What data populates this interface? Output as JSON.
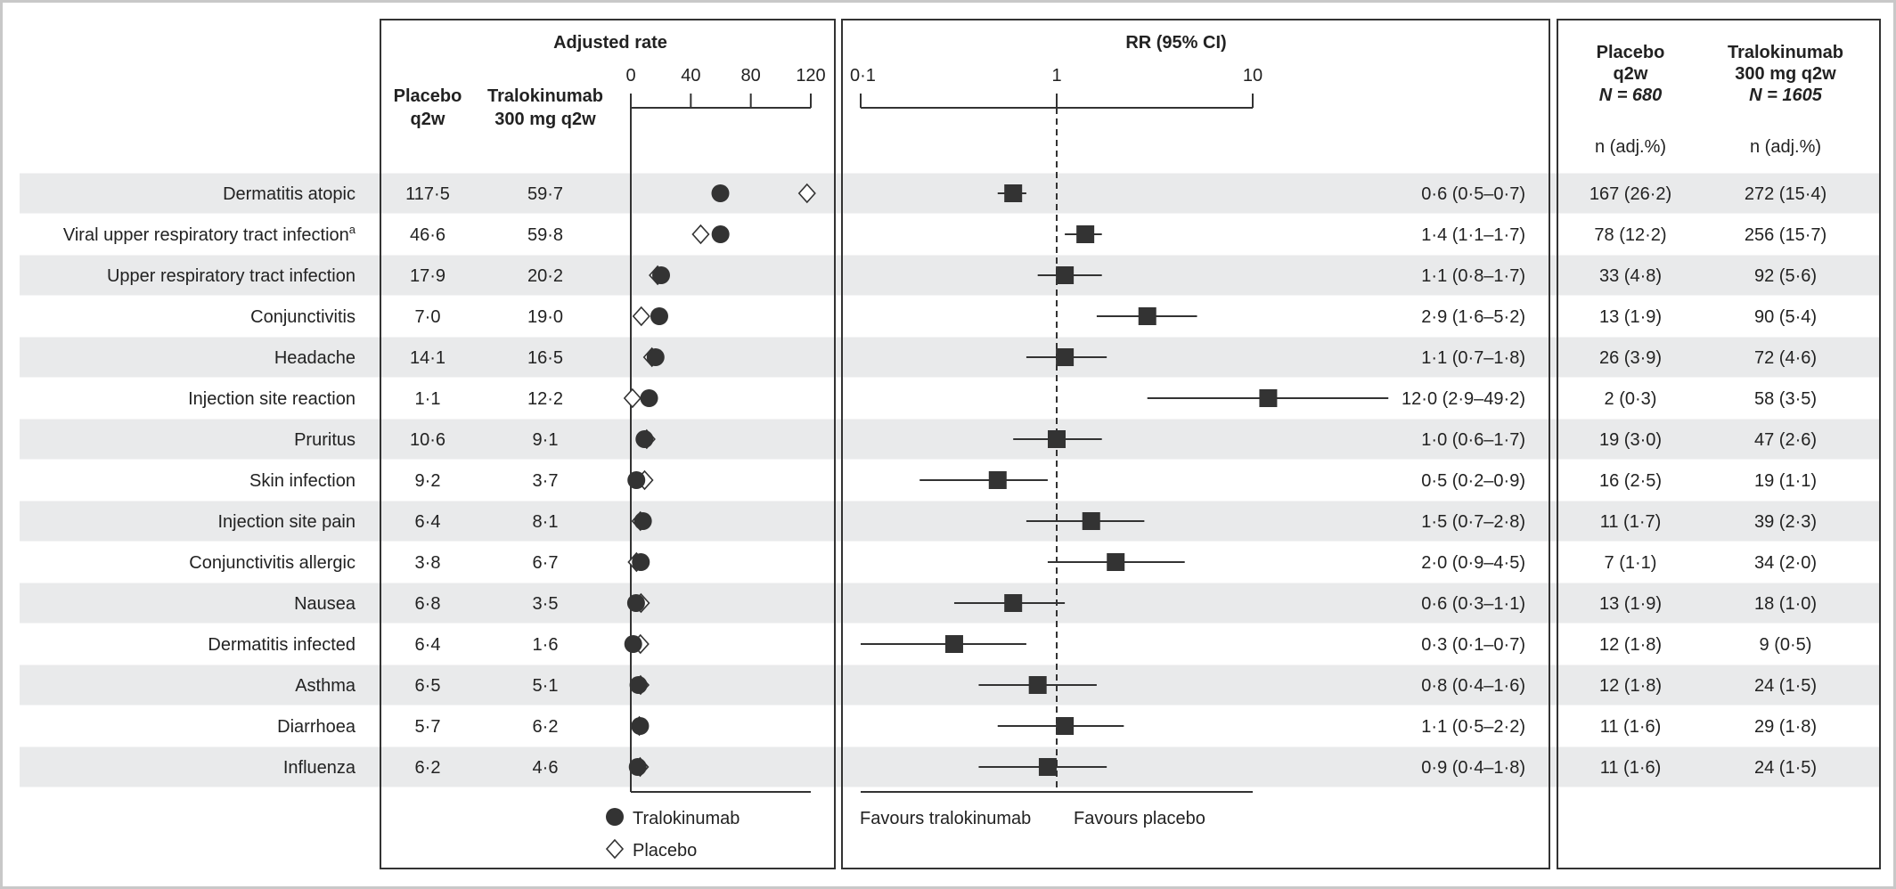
{
  "headers": {
    "adjusted_rate": "Adjusted rate",
    "placebo_col": [
      "Placebo",
      "q2w"
    ],
    "tralo_col": [
      "Tralokinumab",
      "300 mg q2w"
    ],
    "rr": "RR (95% CI)",
    "right_placebo": [
      "Placebo",
      "q2w"
    ],
    "right_placebo_n": "N = 680",
    "right_tralo": [
      "Tralokinumab",
      "300 mg q2w"
    ],
    "right_tralo_n": "N = 1605",
    "n_adj": "n (adj.%)"
  },
  "rate_axis_ticks": [
    "0",
    "40",
    "80",
    "120"
  ],
  "rr_axis_ticks": [
    "0·1",
    "1",
    "10"
  ],
  "legend": {
    "tralokinumab": "Tralokinumab",
    "placebo": "Placebo"
  },
  "favours": {
    "left": "Favours tralokinumab",
    "right": "Favours placebo"
  },
  "colors": {
    "band": "#e9eaeb",
    "marker": "#333333",
    "frame": "#333333"
  },
  "rows": [
    {
      "label": "Dermatitis atopic",
      "label_sup": "",
      "placebo_rate": "117·5",
      "tralo_rate": "59·7",
      "rr_text": "0·6 (0·5–0·7)",
      "placebo_n": "167 (26·2)",
      "tralo_n": "272 (15·4)"
    },
    {
      "label": "Viral upper respiratory tract infection",
      "label_sup": "a",
      "placebo_rate": "46·6",
      "tralo_rate": "59·8",
      "rr_text": "1·4 (1·1–1·7)",
      "placebo_n": "78 (12·2)",
      "tralo_n": "256 (15·7)"
    },
    {
      "label": "Upper respiratory tract infection",
      "label_sup": "",
      "placebo_rate": "17·9",
      "tralo_rate": "20·2",
      "rr_text": "1·1 (0·8–1·7)",
      "placebo_n": "33 (4·8)",
      "tralo_n": "92 (5·6)"
    },
    {
      "label": "Conjunctivitis",
      "label_sup": "",
      "placebo_rate": "7·0",
      "tralo_rate": "19·0",
      "rr_text": "2·9 (1·6–5·2)",
      "placebo_n": "13 (1·9)",
      "tralo_n": "90 (5·4)"
    },
    {
      "label": "Headache",
      "label_sup": "",
      "placebo_rate": "14·1",
      "tralo_rate": "16·5",
      "rr_text": "1·1 (0·7–1·8)",
      "placebo_n": "26 (3·9)",
      "tralo_n": "72 (4·6)"
    },
    {
      "label": "Injection site reaction",
      "label_sup": "",
      "placebo_rate": "1·1",
      "tralo_rate": "12·2",
      "rr_text": "12·0 (2·9–49·2)",
      "placebo_n": "2 (0·3)",
      "tralo_n": "58 (3·5)"
    },
    {
      "label": "Pruritus",
      "label_sup": "",
      "placebo_rate": "10·6",
      "tralo_rate": "9·1",
      "rr_text": "1·0 (0·6–1·7)",
      "placebo_n": "19 (3·0)",
      "tralo_n": "47 (2·6)"
    },
    {
      "label": "Skin infection",
      "label_sup": "",
      "placebo_rate": "9·2",
      "tralo_rate": "3·7",
      "rr_text": "0·5 (0·2–0·9)",
      "placebo_n": "16 (2·5)",
      "tralo_n": "19 (1·1)"
    },
    {
      "label": "Injection site pain",
      "label_sup": "",
      "placebo_rate": "6·4",
      "tralo_rate": "8·1",
      "rr_text": "1·5 (0·7–2·8)",
      "placebo_n": "11 (1·7)",
      "tralo_n": "39 (2·3)"
    },
    {
      "label": "Conjunctivitis allergic",
      "label_sup": "",
      "placebo_rate": "3·8",
      "tralo_rate": "6·7",
      "rr_text": "2·0 (0·9–4·5)",
      "placebo_n": "7 (1·1)",
      "tralo_n": "34 (2·0)"
    },
    {
      "label": "Nausea",
      "label_sup": "",
      "placebo_rate": "6·8",
      "tralo_rate": "3·5",
      "rr_text": "0·6 (0·3–1·1)",
      "placebo_n": "13 (1·9)",
      "tralo_n": "18 (1·0)"
    },
    {
      "label": "Dermatitis infected",
      "label_sup": "",
      "placebo_rate": "6·4",
      "tralo_rate": "1·6",
      "rr_text": "0·3 (0·1–0·7)",
      "placebo_n": "12 (1·8)",
      "tralo_n": "9 (0·5)"
    },
    {
      "label": "Asthma",
      "label_sup": "",
      "placebo_rate": "6·5",
      "tralo_rate": "5·1",
      "rr_text": "0·8 (0·4–1·6)",
      "placebo_n": "12 (1·8)",
      "tralo_n": "24 (1·5)"
    },
    {
      "label": "Diarrhoea",
      "label_sup": "",
      "placebo_rate": "5·7",
      "tralo_rate": "6·2",
      "rr_text": "1·1 (0·5–2·2)",
      "placebo_n": "11 (1·6)",
      "tralo_n": "29 (1·8)"
    },
    {
      "label": "Influenza",
      "label_sup": "",
      "placebo_rate": "6·2",
      "tralo_rate": "4·6",
      "rr_text": "0·9 (0·4–1·8)",
      "placebo_n": "11 (1·6)",
      "tralo_n": "24 (1·5)"
    }
  ],
  "chart_data": {
    "type": "scatter",
    "title": "",
    "panels": [
      "Adjusted rate",
      "RR (95% CI)"
    ],
    "categories": [
      "Dermatitis atopic",
      "Viral upper respiratory tract infection",
      "Upper respiratory tract infection",
      "Conjunctivitis",
      "Headache",
      "Injection site reaction",
      "Pruritus",
      "Skin infection",
      "Injection site pain",
      "Conjunctivitis allergic",
      "Nausea",
      "Dermatitis infected",
      "Asthma",
      "Diarrhoea",
      "Influenza"
    ],
    "rate_xlim": [
      0,
      120
    ],
    "rate_series": [
      {
        "name": "Tralokinumab",
        "marker": "filled-circle",
        "values": [
          59.7,
          59.8,
          20.2,
          19.0,
          16.5,
          12.2,
          9.1,
          3.7,
          8.1,
          6.7,
          3.5,
          1.6,
          5.1,
          6.2,
          4.6
        ]
      },
      {
        "name": "Placebo",
        "marker": "open-diamond",
        "values": [
          117.5,
          46.6,
          17.9,
          7.0,
          14.1,
          1.1,
          10.6,
          9.2,
          6.4,
          3.8,
          6.8,
          6.4,
          6.5,
          5.7,
          6.2
        ]
      }
    ],
    "rr_xlim": [
      0.1,
      10
    ],
    "rr_scale": "log",
    "rr_reference": 1,
    "rr": [
      0.6,
      1.4,
      1.1,
      2.9,
      1.1,
      12.0,
      1.0,
      0.5,
      1.5,
      2.0,
      0.6,
      0.3,
      0.8,
      1.1,
      0.9
    ],
    "rr_lower": [
      0.5,
      1.1,
      0.8,
      1.6,
      0.7,
      2.9,
      0.6,
      0.2,
      0.7,
      0.9,
      0.3,
      0.1,
      0.4,
      0.5,
      0.4
    ],
    "rr_upper": [
      0.7,
      1.7,
      1.7,
      5.2,
      1.8,
      49.2,
      1.7,
      0.9,
      2.8,
      4.5,
      1.1,
      0.7,
      1.6,
      2.2,
      1.8
    ]
  }
}
